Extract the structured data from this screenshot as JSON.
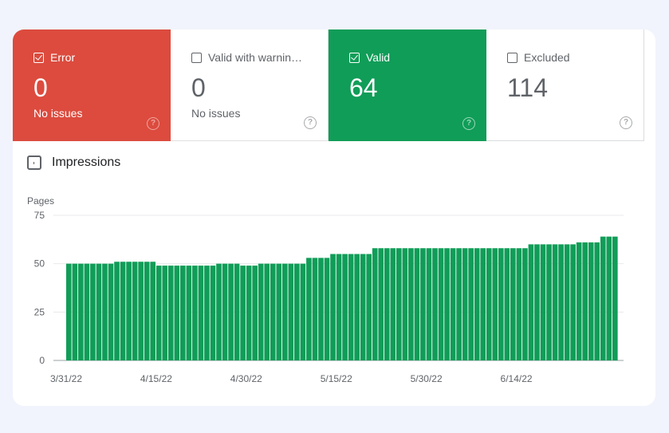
{
  "tiles": [
    {
      "key": "error",
      "label": "Error",
      "count": "0",
      "sub": "No issues",
      "checked": true
    },
    {
      "key": "warn",
      "label": "Valid with warnin…",
      "count": "0",
      "sub": "No issues",
      "checked": false
    },
    {
      "key": "valid",
      "label": "Valid",
      "count": "64",
      "sub": "",
      "checked": true
    },
    {
      "key": "excluded",
      "label": "Excluded",
      "count": "114",
      "sub": "",
      "checked": false
    }
  ],
  "metric": {
    "label": "Impressions"
  },
  "colors": {
    "error": "#dc4b3e",
    "valid": "#109d58",
    "bar": "#109d58"
  },
  "chart_data": {
    "type": "bar",
    "ylabel": "Pages",
    "ylim": [
      0,
      75
    ],
    "yticks": [
      0,
      25,
      50,
      75
    ],
    "xtick_labels": [
      "3/31/22",
      "4/15/22",
      "4/30/22",
      "5/15/22",
      "5/30/22",
      "6/14/22"
    ],
    "xtick_indices": [
      0,
      15,
      30,
      45,
      60,
      75
    ],
    "values": [
      50,
      50,
      50,
      50,
      50,
      50,
      50,
      50,
      51,
      51,
      51,
      51,
      51,
      51,
      51,
      49,
      49,
      49,
      49,
      49,
      49,
      49,
      49,
      49,
      49,
      50,
      50,
      50,
      50,
      49,
      49,
      49,
      50,
      50,
      50,
      50,
      50,
      50,
      50,
      50,
      53,
      53,
      53,
      53,
      55,
      55,
      55,
      55,
      55,
      55,
      55,
      58,
      58,
      58,
      58,
      58,
      58,
      58,
      58,
      58,
      58,
      58,
      58,
      58,
      58,
      58,
      58,
      58,
      58,
      58,
      58,
      58,
      58,
      58,
      58,
      58,
      58,
      60,
      60,
      60,
      60,
      60,
      60,
      60,
      60,
      61,
      61,
      61,
      61,
      64,
      64,
      64
    ]
  }
}
